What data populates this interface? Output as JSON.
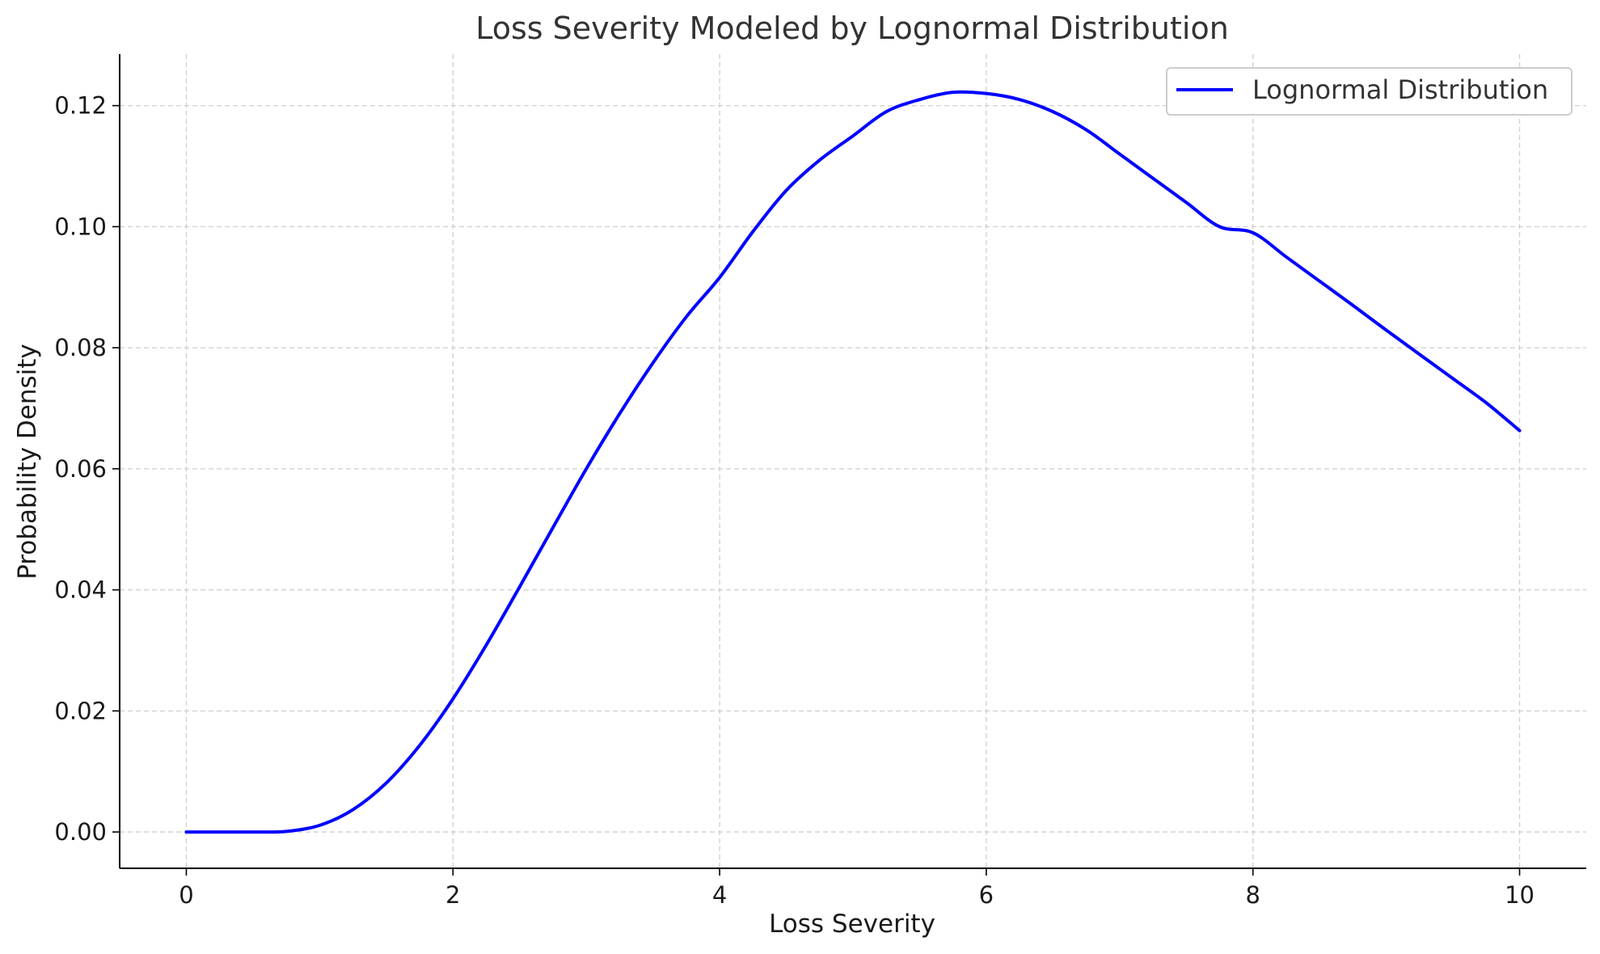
{
  "chart_data": {
    "type": "line",
    "title": "Loss Severity Modeled by Lognormal Distribution",
    "xlabel": "Loss Severity",
    "ylabel": "Probability Density",
    "xlim": [
      -0.5,
      10.5
    ],
    "ylim": [
      -0.006,
      0.1285
    ],
    "x_ticks": [
      0,
      2,
      4,
      6,
      8,
      10
    ],
    "x_tick_labels": [
      "0",
      "2",
      "4",
      "6",
      "8",
      "10"
    ],
    "y_ticks": [
      0.0,
      0.02,
      0.04,
      0.06,
      0.08,
      0.1,
      0.12
    ],
    "y_tick_labels": [
      "0.00",
      "0.02",
      "0.04",
      "0.06",
      "0.08",
      "0.10",
      "0.12"
    ],
    "grid": true,
    "legend_position": "top-right",
    "series": [
      {
        "name": "Lognormal Distribution",
        "color": "#0000ff",
        "x": [
          0.0,
          0.25,
          0.5,
          0.75,
          1.0,
          1.25,
          1.5,
          1.75,
          2.0,
          2.25,
          2.5,
          2.75,
          3.0,
          3.25,
          3.5,
          3.75,
          4.0,
          4.25,
          4.5,
          4.75,
          5.0,
          5.25,
          5.5,
          5.75,
          6.0,
          6.25,
          6.5,
          6.75,
          7.0,
          7.25,
          7.5,
          7.75,
          8.0,
          8.25,
          8.5,
          8.75,
          9.0,
          9.25,
          9.5,
          9.75,
          10.0
        ],
        "y": [
          0.0,
          0.0,
          0.0,
          0.0001,
          0.0011,
          0.0037,
          0.0081,
          0.0143,
          0.022,
          0.0309,
          0.0405,
          0.0503,
          0.06,
          0.0691,
          0.0775,
          0.0851,
          0.0916,
          0.0992,
          0.106,
          0.111,
          0.115,
          0.119,
          0.121,
          0.1222,
          0.122,
          0.121,
          0.119,
          0.116,
          0.112,
          0.108,
          0.104,
          0.1,
          0.099,
          0.095,
          0.091,
          0.087,
          0.0829,
          0.0789,
          0.0749,
          0.0709,
          0.0663
        ]
      }
    ]
  }
}
